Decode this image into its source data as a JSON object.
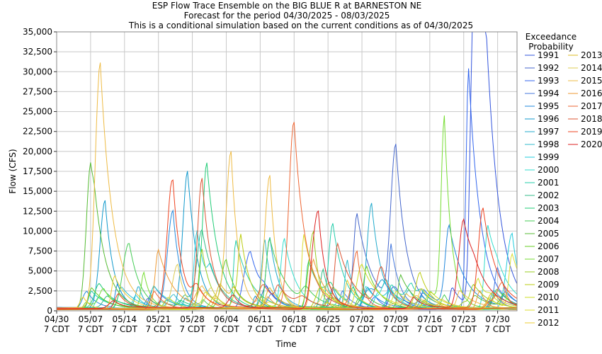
{
  "chart_data": {
    "type": "line",
    "title": "ESP Flow Trace Ensemble on the BIG BLUE R at BARNESTON NE",
    "subtitle": "Forecast for the period 04/30/2025 - 08/03/2025",
    "subtitle2": "This is a conditional simulation based on the current conditions as of 04/30/2025",
    "xlabel": "Time",
    "ylabel": "Flow (CFS)",
    "ylim": [
      0,
      35000
    ],
    "y_ticks": [
      "0",
      "2,500",
      "5,000",
      "7,500",
      "10,000",
      "12,500",
      "15,000",
      "17,500",
      "20,000",
      "22,500",
      "25,000",
      "27,500",
      "30,000",
      "32,500",
      "35,000"
    ],
    "x_start": "04/30",
    "x_end": "08/03",
    "x_ticks": [
      {
        "day": 0,
        "date": "04/30",
        "tz": "7 CDT"
      },
      {
        "day": 7,
        "date": "05/07",
        "tz": "7 CDT"
      },
      {
        "day": 14,
        "date": "05/14",
        "tz": "7 CDT"
      },
      {
        "day": 21,
        "date": "05/21",
        "tz": "7 CDT"
      },
      {
        "day": 28,
        "date": "05/28",
        "tz": "7 CDT"
      },
      {
        "day": 35,
        "date": "06/04",
        "tz": "7 CDT"
      },
      {
        "day": 42,
        "date": "06/11",
        "tz": "7 CDT"
      },
      {
        "day": 49,
        "date": "06/18",
        "tz": "7 CDT"
      },
      {
        "day": 56,
        "date": "06/25",
        "tz": "7 CDT"
      },
      {
        "day": 63,
        "date": "07/02",
        "tz": "7 CDT"
      },
      {
        "day": 70,
        "date": "07/09",
        "tz": "7 CDT"
      },
      {
        "day": 77,
        "date": "07/16",
        "tz": "7 CDT"
      },
      {
        "day": 84,
        "date": "07/23",
        "tz": "7 CDT"
      },
      {
        "day": 91,
        "date": "07/30",
        "tz": "7 CDT"
      }
    ],
    "x_range_days": [
      0,
      95
    ],
    "grid": true,
    "legend_title": "Exceedance\nProbability",
    "legend_position": "right",
    "series": [
      {
        "name": "1991",
        "color": "#3355dd",
        "peaks": [
          [
            86,
            33600
          ],
          [
            88,
            29300
          ]
        ]
      },
      {
        "name": "1992",
        "color": "#4466cc",
        "peaks": [
          [
            70,
            19800
          ],
          [
            62,
            11800
          ]
        ]
      },
      {
        "name": "1993",
        "color": "#3366ee",
        "peaks": [
          [
            40,
            6000
          ],
          [
            85,
            30200
          ]
        ]
      },
      {
        "name": "1994",
        "color": "#4477dd",
        "peaks": [
          [
            69,
            8200
          ],
          [
            91,
            5000
          ]
        ]
      },
      {
        "name": "1995",
        "color": "#2288dd",
        "peaks": [
          [
            24,
            12200
          ],
          [
            81,
            10000
          ]
        ]
      },
      {
        "name": "1996",
        "color": "#1199cc",
        "peaks": [
          [
            27,
            15500
          ],
          [
            10,
            13500
          ]
        ]
      },
      {
        "name": "1997",
        "color": "#22aacc",
        "peaks": [
          [
            44,
            9000
          ],
          [
            65,
            13100
          ]
        ]
      },
      {
        "name": "1998",
        "color": "#33bbcc",
        "peaks": [
          [
            43,
            8600
          ],
          [
            60,
            6000
          ]
        ]
      },
      {
        "name": "1999",
        "color": "#22ccdd",
        "peaks": [
          [
            29,
            9000
          ],
          [
            94,
            9500
          ]
        ]
      },
      {
        "name": "2000",
        "color": "#33ddcc",
        "peaks": [
          [
            47,
            8800
          ],
          [
            89,
            10400
          ]
        ]
      },
      {
        "name": "2001",
        "color": "#22ccaa",
        "peaks": [
          [
            57,
            10800
          ],
          [
            37,
            8500
          ]
        ]
      },
      {
        "name": "2002",
        "color": "#33bb88",
        "peaks": [
          [
            30,
            9500
          ],
          [
            55,
            5000
          ]
        ]
      },
      {
        "name": "2003",
        "color": "#22cc77",
        "peaks": [
          [
            31,
            18200
          ],
          [
            52,
            6000
          ]
        ]
      },
      {
        "name": "2004",
        "color": "#44cc55",
        "peaks": [
          [
            44,
            8800
          ],
          [
            15,
            6200
          ]
        ]
      },
      {
        "name": "2005",
        "color": "#55bb33",
        "peaks": [
          [
            7,
            17800
          ],
          [
            71,
            4200
          ]
        ]
      },
      {
        "name": "2006",
        "color": "#66cc22",
        "peaks": [
          [
            35,
            6000
          ],
          [
            64,
            5000
          ]
        ]
      },
      {
        "name": "2007",
        "color": "#77dd33",
        "peaks": [
          [
            80,
            22900
          ],
          [
            18,
            4500
          ]
        ]
      },
      {
        "name": "2008",
        "color": "#99cc22",
        "peaks": [
          [
            53,
            9800
          ],
          [
            30,
            7500
          ]
        ]
      },
      {
        "name": "2009",
        "color": "#bbcc11",
        "peaks": [
          [
            38,
            8200
          ],
          [
            75,
            4500
          ]
        ]
      },
      {
        "name": "2010",
        "color": "#ccdd22",
        "peaks": [
          [
            63,
            5500
          ],
          [
            87,
            3800
          ]
        ]
      },
      {
        "name": "2011",
        "color": "#dddd33",
        "peaks": [
          [
            51,
            9300
          ],
          [
            94,
            6800
          ]
        ]
      },
      {
        "name": "2012",
        "color": "#eecc33",
        "peaks": [
          [
            12,
            4200
          ],
          [
            60,
            3500
          ]
        ]
      },
      {
        "name": "2013",
        "color": "#ddbb22",
        "peaks": [
          [
            44,
            2500
          ],
          [
            90,
            2000
          ]
        ]
      },
      {
        "name": "2014",
        "color": "#ddcc55",
        "peaks": [
          [
            25,
            5500
          ],
          [
            56,
            3000
          ]
        ]
      },
      {
        "name": "2015",
        "color": "#eebb44",
        "peaks": [
          [
            9,
            30700
          ],
          [
            36,
            19400
          ],
          [
            44,
            16700
          ]
        ]
      },
      {
        "name": "2016",
        "color": "#ee9933",
        "peaks": [
          [
            21,
            7500
          ],
          [
            53,
            6200
          ]
        ]
      },
      {
        "name": "2017",
        "color": "#ee6633",
        "peaks": [
          [
            49,
            20400
          ],
          [
            62,
            7000
          ]
        ]
      },
      {
        "name": "2018",
        "color": "#dd5533",
        "peaks": [
          [
            30,
            16300
          ],
          [
            58,
            8000
          ]
        ]
      },
      {
        "name": "2019",
        "color": "#ee4422",
        "peaks": [
          [
            24,
            14700
          ],
          [
            88,
            12500
          ]
        ]
      },
      {
        "name": "2020",
        "color": "#dd2222",
        "peaks": [
          [
            54,
            10500
          ],
          [
            84,
            10300
          ]
        ]
      }
    ]
  }
}
